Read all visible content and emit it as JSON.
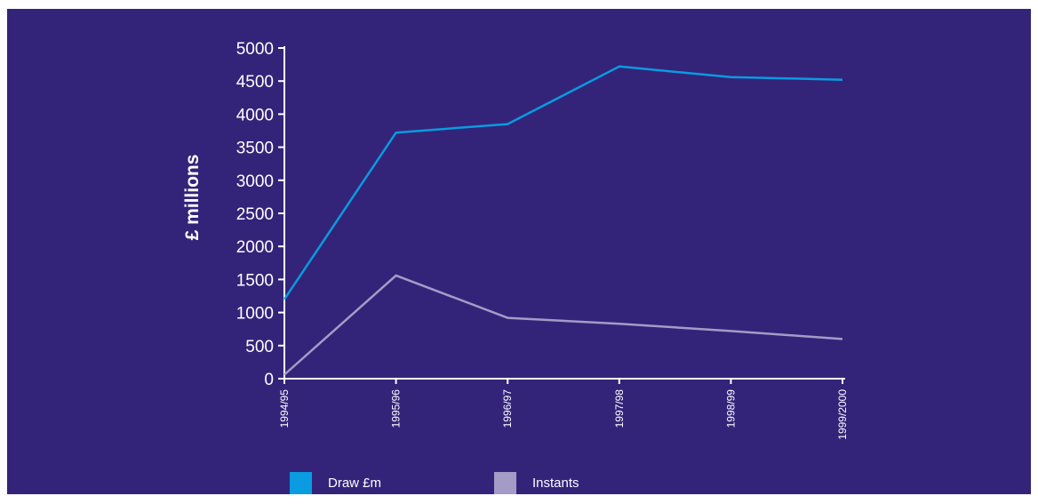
{
  "chart_data": {
    "type": "line",
    "title": "",
    "xlabel": "",
    "ylabel": "£ millions",
    "categories": [
      "1994/95",
      "1995/96",
      "1996/97",
      "1997/98",
      "1998/99",
      "1999/2000"
    ],
    "ylim": [
      0,
      5000
    ],
    "yticks": [
      0,
      500,
      1000,
      1500,
      2000,
      2500,
      3000,
      3500,
      4000,
      4500,
      5000
    ],
    "grid": false,
    "legend_position": "bottom",
    "series": [
      {
        "name": "Draw £m",
        "color": "#0a9be0",
        "values": [
          1200,
          3720,
          3850,
          4720,
          4560,
          4520
        ]
      },
      {
        "name": "Instants",
        "color": "#a59bc7",
        "values": [
          60,
          1560,
          920,
          830,
          720,
          600
        ]
      }
    ]
  },
  "colors": {
    "background": "#33247a",
    "axis": "#ffffff",
    "text": "#ffffff"
  }
}
